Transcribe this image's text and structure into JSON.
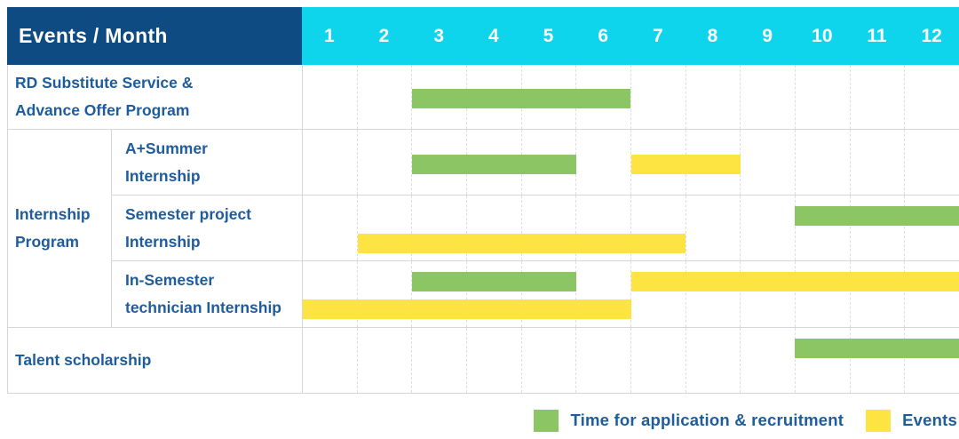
{
  "colors": {
    "header_bg": "#0d4b82",
    "month_header_bg": "#0fd5ec",
    "green": "#8cc563",
    "yellow": "#fde443",
    "label_text": "#1e5c9c",
    "grid_line": "#d6d6d6"
  },
  "chart_data": {
    "type": "gantt",
    "corner_label": "Events / Month",
    "x_axis_unit": "Month",
    "x_ticks": [
      "1",
      "2",
      "3",
      "4",
      "5",
      "6",
      "7",
      "8",
      "9",
      "10",
      "11",
      "12"
    ],
    "x_range": [
      1,
      12
    ],
    "grid": true,
    "legend_position": "bottom-right",
    "legend": [
      {
        "color_key": "green",
        "color": "#8cc563",
        "label": "Time for application & recruitment"
      },
      {
        "color_key": "yellow",
        "color": "#fde443",
        "label": "Events"
      }
    ],
    "groups": [
      {
        "label": "Internship Program",
        "label_lines": [
          "Internship",
          "Program"
        ],
        "row_labels": [
          "A+Summer Internship",
          "Semester project Internship",
          "In-Semester technician Internship"
        ]
      }
    ],
    "rows": [
      {
        "label": "RD Substitute Service & Advance Offer Program",
        "label_lines": [
          "RD Substitute Service &",
          "Advance Offer Program"
        ],
        "group": null,
        "bars": [
          {
            "color": "green",
            "meaning": "Time for application & recruitment",
            "start_month": 3,
            "end_month": 6,
            "lane": "center"
          }
        ]
      },
      {
        "label": "A+Summer Internship",
        "label_lines": [
          "A+Summer",
          "Internship"
        ],
        "group": "Internship Program",
        "bars": [
          {
            "color": "green",
            "meaning": "Time for application & recruitment",
            "start_month": 3,
            "end_month": 5,
            "lane": "center"
          },
          {
            "color": "yellow",
            "meaning": "Events",
            "start_month": 7,
            "end_month": 8,
            "lane": "center"
          }
        ]
      },
      {
        "label": "Semester project Internship",
        "label_lines": [
          "Semester project",
          "Internship"
        ],
        "group": "Internship Program",
        "bars": [
          {
            "color": "green",
            "meaning": "Time for application & recruitment",
            "start_month": 10,
            "end_month": 12,
            "lane": "top"
          },
          {
            "color": "yellow",
            "meaning": "Events",
            "start_month": 2,
            "end_month": 7,
            "lane": "bottom"
          }
        ]
      },
      {
        "label": "In-Semester technician Internship",
        "label_lines": [
          "In-Semester",
          "technician Internship"
        ],
        "group": "Internship Program",
        "bars": [
          {
            "color": "green",
            "meaning": "Time for application & recruitment",
            "start_month": 3,
            "end_month": 5,
            "lane": "top"
          },
          {
            "color": "yellow",
            "meaning": "Events",
            "start_month": 7,
            "end_month": 12,
            "lane": "top"
          },
          {
            "color": "yellow",
            "meaning": "Events",
            "start_month": 1,
            "end_month": 6,
            "lane": "bottom"
          }
        ]
      },
      {
        "label": "Talent scholarship",
        "label_lines": [
          "Talent scholarship"
        ],
        "group": null,
        "bars": [
          {
            "color": "green",
            "meaning": "Time for application & recruitment",
            "start_month": 10,
            "end_month": 12,
            "lane": "top"
          }
        ]
      }
    ]
  }
}
